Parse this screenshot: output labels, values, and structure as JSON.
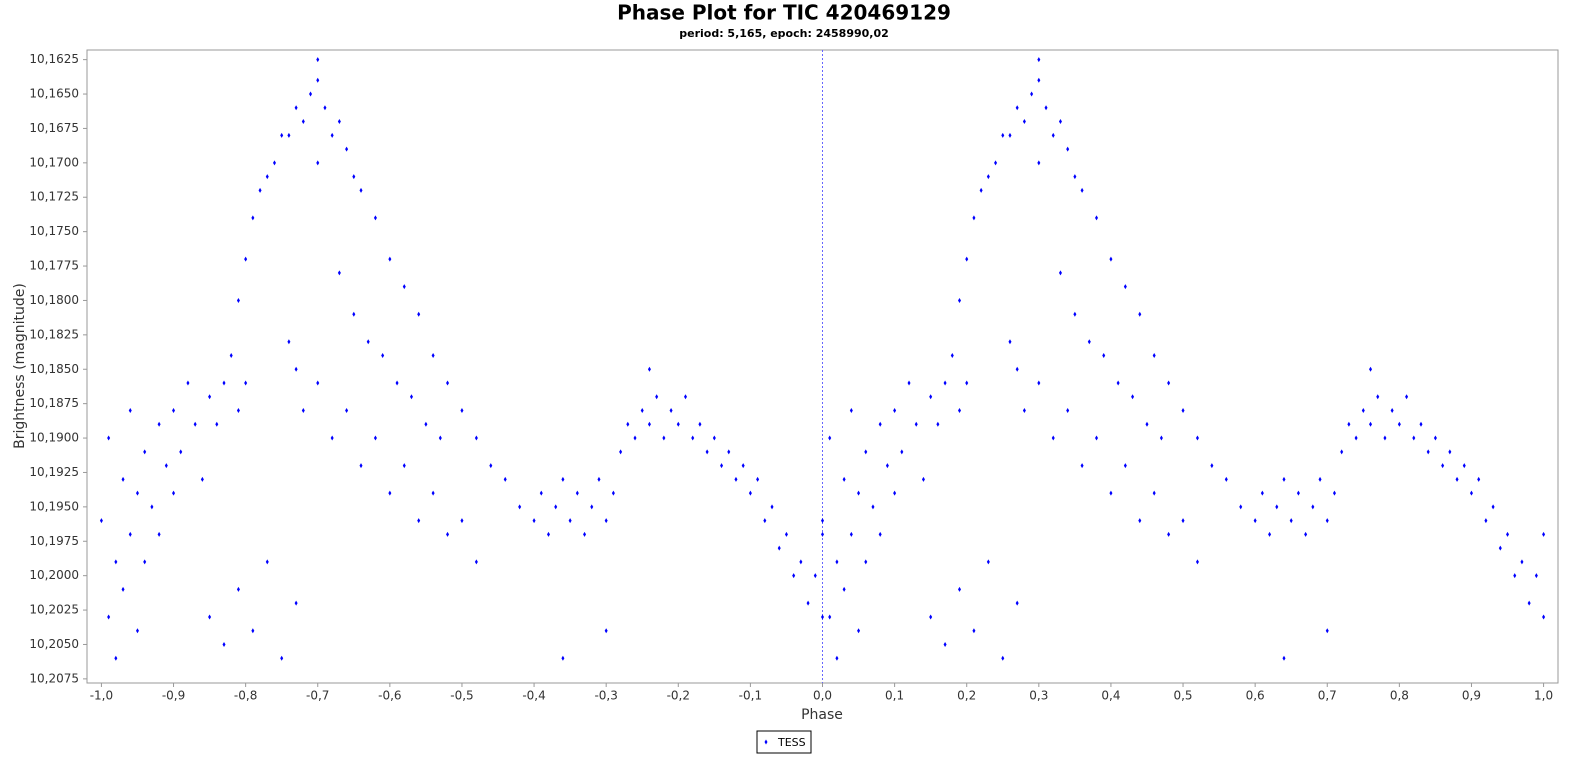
{
  "chart_data": {
    "type": "scatter",
    "title": "Phase Plot for TIC 420469129",
    "subtitle": "period: 5,165, epoch: 2458990,02",
    "x_label": "Phase",
    "y_label": "Brightness (magnitude)",
    "crosshair_x": 0,
    "legend": "bottom",
    "xlim": [
      -1.02,
      1.02
    ],
    "ylim": [
      10.2078,
      10.1618
    ],
    "xticks": [
      {
        "value": -1,
        "label": "-1,0"
      },
      {
        "value": -0.9,
        "label": "-0,9"
      },
      {
        "value": -0.8,
        "label": "-0,8"
      },
      {
        "value": -0.7,
        "label": "-0,7"
      },
      {
        "value": -0.6,
        "label": "-0,6"
      },
      {
        "value": -0.5,
        "label": "-0,5"
      },
      {
        "value": -0.4,
        "label": "-0,4"
      },
      {
        "value": -0.3,
        "label": "-0,3"
      },
      {
        "value": -0.2,
        "label": "-0,2"
      },
      {
        "value": -0.1,
        "label": "-0,1"
      },
      {
        "value": 0,
        "label": "0,0"
      },
      {
        "value": 0.1,
        "label": "0,1"
      },
      {
        "value": 0.2,
        "label": "0,2"
      },
      {
        "value": 0.3,
        "label": "0,3"
      },
      {
        "value": 0.4,
        "label": "0,4"
      },
      {
        "value": 0.5,
        "label": "0,5"
      },
      {
        "value": 0.6,
        "label": "0,6"
      },
      {
        "value": 0.7,
        "label": "0,7"
      },
      {
        "value": 0.8,
        "label": "0,8"
      },
      {
        "value": 0.9,
        "label": "0,9"
      },
      {
        "value": 1,
        "label": "1,0"
      }
    ],
    "yticks": [
      {
        "value": 10.1625,
        "label": "10,1625"
      },
      {
        "value": 10.165,
        "label": "10,1650"
      },
      {
        "value": 10.1675,
        "label": "10,1675"
      },
      {
        "value": 10.17,
        "label": "10,1700"
      },
      {
        "value": 10.1725,
        "label": "10,1725"
      },
      {
        "value": 10.175,
        "label": "10,1750"
      },
      {
        "value": 10.1775,
        "label": "10,1775"
      },
      {
        "value": 10.18,
        "label": "10,1800"
      },
      {
        "value": 10.1825,
        "label": "10,1825"
      },
      {
        "value": 10.185,
        "label": "10,1850"
      },
      {
        "value": 10.1875,
        "label": "10,1875"
      },
      {
        "value": 10.19,
        "label": "10,1900"
      },
      {
        "value": 10.1925,
        "label": "10,1925"
      },
      {
        "value": 10.195,
        "label": "10,1950"
      },
      {
        "value": 10.1975,
        "label": "10,1975"
      },
      {
        "value": 10.2,
        "label": "10,2000"
      },
      {
        "value": 10.2025,
        "label": "10,2025"
      },
      {
        "value": 10.205,
        "label": "10,2050"
      },
      {
        "value": 10.2075,
        "label": "10,2075"
      }
    ],
    "series": [
      {
        "name": "TESS",
        "color": "#0000ff",
        "x": [
          -1.0,
          -0.99,
          -0.99,
          -0.98,
          -0.98,
          -0.97,
          -0.97,
          -0.96,
          -0.96,
          -0.95,
          -0.95,
          -0.94,
          -0.94,
          -0.93,
          -0.92,
          -0.92,
          -0.91,
          -0.9,
          -0.9,
          -0.89,
          -0.88,
          -0.87,
          -0.86,
          -0.85,
          -0.84,
          -0.83,
          -0.82,
          -0.81,
          -0.81,
          -0.8,
          -0.8,
          -0.79,
          -0.78,
          -0.77,
          -0.76,
          -0.75,
          -0.74,
          -0.73,
          -0.72,
          -0.71,
          -0.7,
          -0.7,
          -0.69,
          -0.68,
          -0.67,
          -0.66,
          -0.65,
          -0.64,
          -0.62,
          -0.6,
          -0.58,
          -0.56,
          -0.54,
          -0.52,
          -0.5,
          -0.48,
          -0.46,
          -0.44,
          -0.42,
          -0.74,
          -0.73,
          -0.72,
          -0.7,
          -0.68,
          -0.66,
          -0.64,
          -0.62,
          -0.6,
          -0.58,
          -0.56,
          -0.54,
          -0.52,
          -0.5,
          -0.48,
          -0.67,
          -0.65,
          -0.63,
          -0.61,
          -0.59,
          -0.57,
          -0.55,
          -0.53,
          -0.85,
          -0.83,
          -0.81,
          -0.79,
          -0.77,
          -0.75,
          -0.73,
          -0.7,
          -0.4,
          -0.39,
          -0.38,
          -0.37,
          -0.36,
          -0.35,
          -0.34,
          -0.33,
          -0.32,
          -0.31,
          -0.3,
          -0.29,
          -0.28,
          -0.27,
          -0.26,
          -0.25,
          -0.24,
          -0.23,
          -0.22,
          -0.21,
          -0.2,
          -0.19,
          -0.18,
          -0.17,
          -0.16,
          -0.15,
          -0.14,
          -0.13,
          -0.12,
          -0.11,
          -0.1,
          -0.09,
          -0.08,
          -0.07,
          -0.06,
          -0.05,
          -0.04,
          -0.03,
          -0.02,
          -0.01,
          0.0,
          0.0,
          -0.36,
          -0.3,
          -0.24,
          0.0,
          0.01,
          0.01,
          0.02,
          0.02,
          0.03,
          0.03,
          0.04,
          0.04,
          0.05,
          0.05,
          0.06,
          0.06,
          0.07,
          0.08,
          0.08,
          0.09,
          0.1,
          0.1,
          0.11,
          0.12,
          0.13,
          0.14,
          0.15,
          0.16,
          0.17,
          0.18,
          0.19,
          0.19,
          0.2,
          0.2,
          0.21,
          0.22,
          0.23,
          0.24,
          0.25,
          0.26,
          0.27,
          0.28,
          0.29,
          0.3,
          0.3,
          0.31,
          0.32,
          0.33,
          0.34,
          0.35,
          0.36,
          0.38,
          0.4,
          0.42,
          0.44,
          0.46,
          0.48,
          0.5,
          0.52,
          0.54,
          0.56,
          0.58,
          0.26,
          0.27,
          0.28,
          0.3,
          0.32,
          0.34,
          0.36,
          0.38,
          0.4,
          0.42,
          0.44,
          0.46,
          0.48,
          0.5,
          0.52,
          0.33,
          0.35,
          0.37,
          0.39,
          0.41,
          0.43,
          0.45,
          0.47,
          0.15,
          0.17,
          0.19,
          0.21,
          0.23,
          0.25,
          0.27,
          0.3,
          0.6,
          0.61,
          0.62,
          0.63,
          0.64,
          0.65,
          0.66,
          0.67,
          0.68,
          0.69,
          0.7,
          0.71,
          0.72,
          0.73,
          0.74,
          0.75,
          0.76,
          0.77,
          0.78,
          0.79,
          0.8,
          0.81,
          0.82,
          0.83,
          0.84,
          0.85,
          0.86,
          0.87,
          0.88,
          0.89,
          0.9,
          0.91,
          0.92,
          0.93,
          0.94,
          0.95,
          0.96,
          0.97,
          0.98,
          0.99,
          1.0,
          1.0,
          0.64,
          0.7,
          0.76
        ],
        "values": [
          10.196,
          10.203,
          10.19,
          10.199,
          10.206,
          10.193,
          10.201,
          10.188,
          10.197,
          10.204,
          10.194,
          10.191,
          10.199,
          10.195,
          10.189,
          10.197,
          10.192,
          10.194,
          10.188,
          10.191,
          10.186,
          10.189,
          10.193,
          10.187,
          10.189,
          10.186,
          10.184,
          10.188,
          10.18,
          10.177,
          10.186,
          10.174,
          10.172,
          10.171,
          10.17,
          10.168,
          10.168,
          10.166,
          10.167,
          10.165,
          10.164,
          10.17,
          10.166,
          10.168,
          10.167,
          10.169,
          10.171,
          10.172,
          10.174,
          10.177,
          10.179,
          10.181,
          10.184,
          10.186,
          10.188,
          10.19,
          10.192,
          10.193,
          10.195,
          10.183,
          10.185,
          10.188,
          10.186,
          10.19,
          10.188,
          10.192,
          10.19,
          10.194,
          10.192,
          10.196,
          10.194,
          10.197,
          10.196,
          10.199,
          10.178,
          10.181,
          10.183,
          10.184,
          10.186,
          10.187,
          10.189,
          10.19,
          10.203,
          10.205,
          10.201,
          10.204,
          10.199,
          10.206,
          10.202,
          10.1625,
          10.196,
          10.194,
          10.197,
          10.195,
          10.193,
          10.196,
          10.194,
          10.197,
          10.195,
          10.193,
          10.196,
          10.194,
          10.191,
          10.189,
          10.19,
          10.188,
          10.189,
          10.187,
          10.19,
          10.188,
          10.189,
          10.187,
          10.19,
          10.189,
          10.191,
          10.19,
          10.192,
          10.191,
          10.193,
          10.192,
          10.194,
          10.193,
          10.196,
          10.195,
          10.198,
          10.197,
          10.2,
          10.199,
          10.202,
          10.2,
          10.203,
          10.197,
          10.206,
          10.204,
          10.185,
          10.196,
          10.203,
          10.19,
          10.199,
          10.206,
          10.193,
          10.201,
          10.188,
          10.197,
          10.204,
          10.194,
          10.191,
          10.199,
          10.195,
          10.189,
          10.197,
          10.192,
          10.194,
          10.188,
          10.191,
          10.186,
          10.189,
          10.193,
          10.187,
          10.189,
          10.186,
          10.184,
          10.188,
          10.18,
          10.177,
          10.186,
          10.174,
          10.172,
          10.171,
          10.17,
          10.168,
          10.168,
          10.166,
          10.167,
          10.165,
          10.164,
          10.17,
          10.166,
          10.168,
          10.167,
          10.169,
          10.171,
          10.172,
          10.174,
          10.177,
          10.179,
          10.181,
          10.184,
          10.186,
          10.188,
          10.19,
          10.192,
          10.193,
          10.195,
          10.183,
          10.185,
          10.188,
          10.186,
          10.19,
          10.188,
          10.192,
          10.19,
          10.194,
          10.192,
          10.196,
          10.194,
          10.197,
          10.196,
          10.199,
          10.178,
          10.181,
          10.183,
          10.184,
          10.186,
          10.187,
          10.189,
          10.19,
          10.203,
          10.205,
          10.201,
          10.204,
          10.199,
          10.206,
          10.202,
          10.1625,
          10.196,
          10.194,
          10.197,
          10.195,
          10.193,
          10.196,
          10.194,
          10.197,
          10.195,
          10.193,
          10.196,
          10.194,
          10.191,
          10.189,
          10.19,
          10.188,
          10.189,
          10.187,
          10.19,
          10.188,
          10.189,
          10.187,
          10.19,
          10.189,
          10.191,
          10.19,
          10.192,
          10.191,
          10.193,
          10.192,
          10.194,
          10.193,
          10.196,
          10.195,
          10.198,
          10.197,
          10.2,
          10.199,
          10.202,
          10.2,
          10.203,
          10.197,
          10.206,
          10.204,
          10.185
        ]
      }
    ]
  }
}
